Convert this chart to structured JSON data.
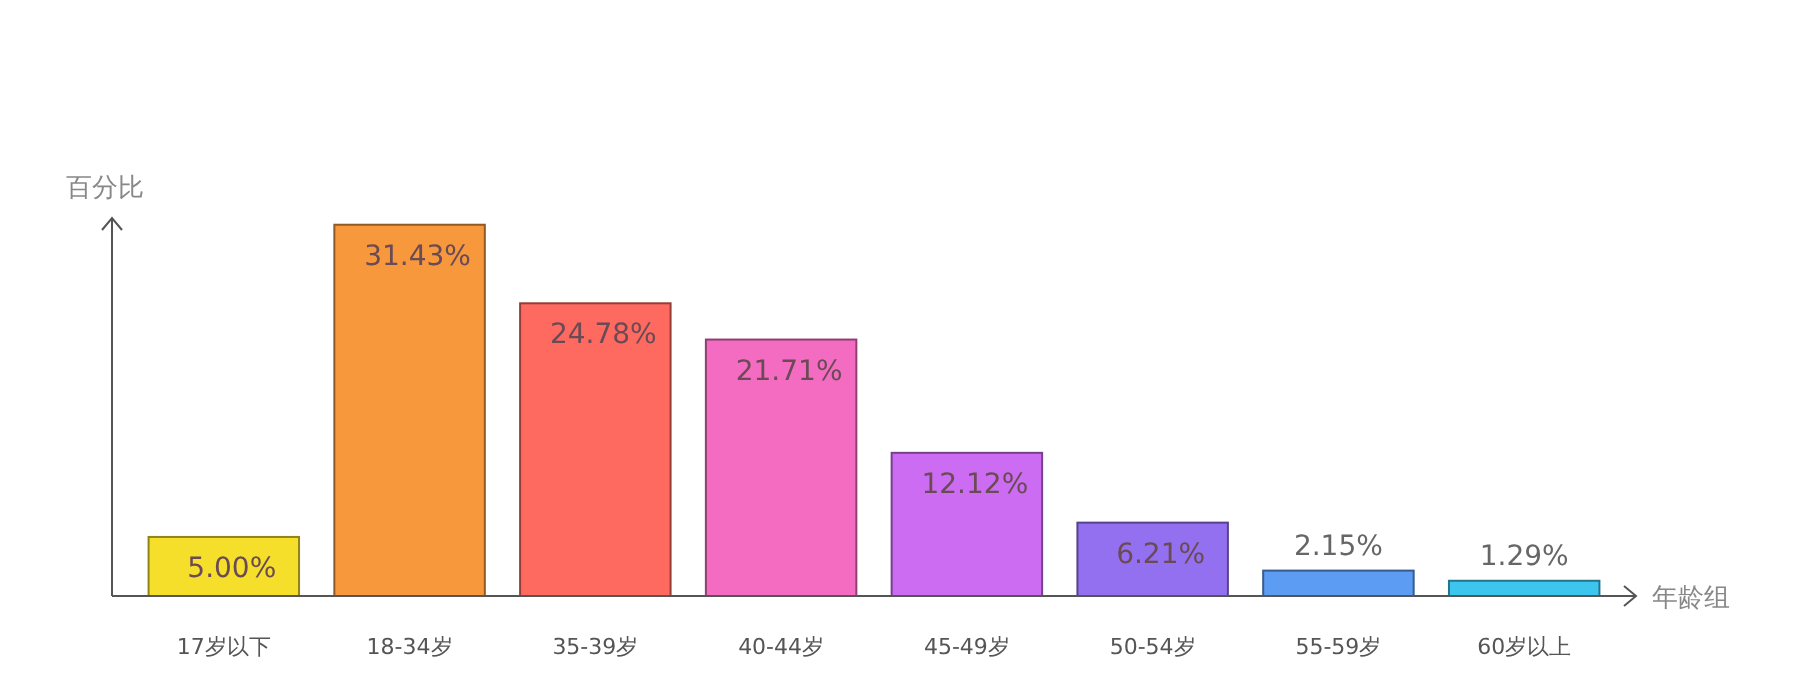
{
  "chart_data": {
    "type": "bar",
    "xlabel": "年龄组",
    "ylabel": "百分比",
    "categories": [
      "17岁以下",
      "18-34岁",
      "35-39岁",
      "40-44岁",
      "45-49岁",
      "50-54岁",
      "55-59岁",
      "60岁以上"
    ],
    "values": [
      5.0,
      31.43,
      24.78,
      21.71,
      12.12,
      6.21,
      2.15,
      1.29
    ],
    "value_labels": [
      "5.00%",
      "31.43%",
      "24.78%",
      "21.71%",
      "12.12%",
      "6.21%",
      "2.15%",
      "1.29%"
    ],
    "colors": [
      "#f5df2a",
      "#f7983c",
      "#ff6a60",
      "#f46cc2",
      "#cc6cf2",
      "#9270f0",
      "#5c9cf2",
      "#3cc6ee"
    ],
    "ylim": [
      0,
      32
    ],
    "tick_labels": "x"
  }
}
